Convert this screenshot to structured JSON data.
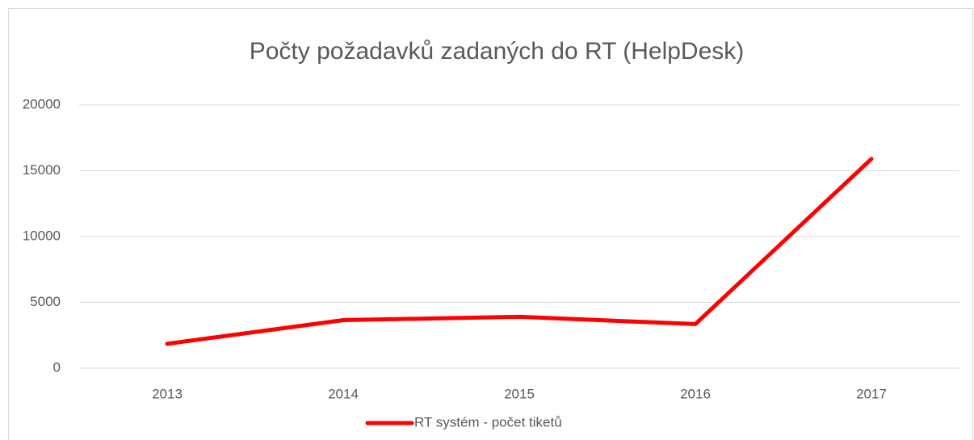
{
  "chart_data": {
    "type": "line",
    "title": "Počty požadavků zadaných do RT (HelpDesk)",
    "categories": [
      "2013",
      "2014",
      "2015",
      "2016",
      "2017"
    ],
    "series": [
      {
        "name": "RT systém - počet tiketů",
        "color": "#ff0000",
        "values": [
          1850,
          3650,
          3900,
          3350,
          15900
        ]
      }
    ],
    "ylim": [
      0,
      20000
    ],
    "yticks": [
      0,
      5000,
      10000,
      15000,
      20000
    ],
    "grid": true,
    "legend": "bottom"
  }
}
